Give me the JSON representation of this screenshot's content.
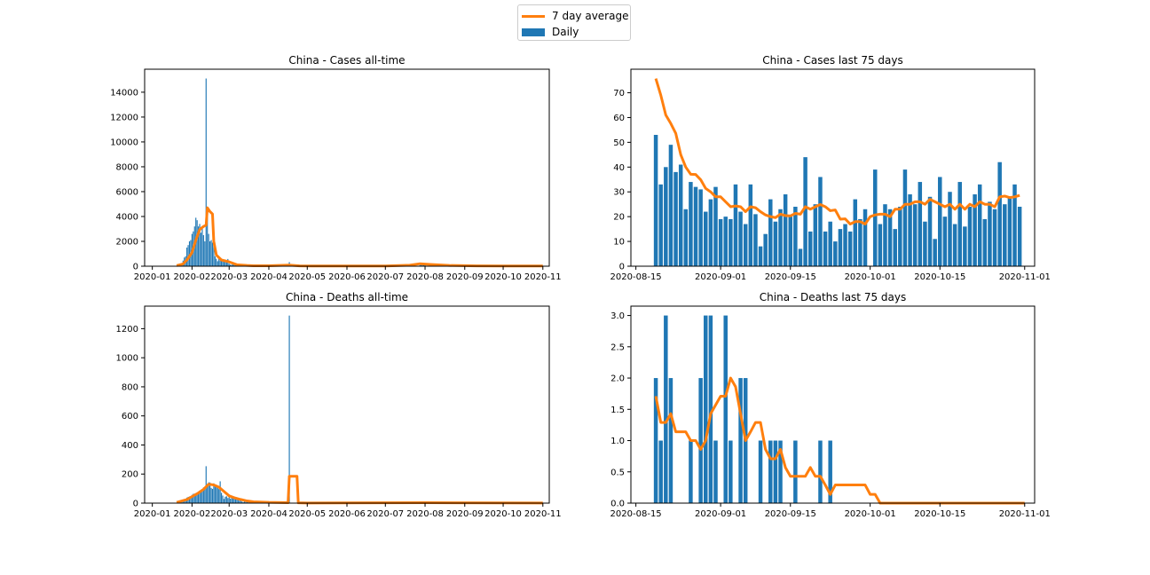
{
  "legend": {
    "avg_label": "7 day average",
    "daily_label": "Daily"
  },
  "colors": {
    "bar": "#1f77b4",
    "line": "#ff7f0e"
  },
  "chart_data": [
    {
      "type": "bar",
      "title": "China - Cases all-time",
      "xlabel": "",
      "ylabel": "",
      "xlim": [
        "2019-12-26",
        "2020-11-06"
      ],
      "ylim": [
        0,
        15850
      ],
      "xticks": [
        "2020-01-01",
        "2020-02-01",
        "2020-03-01",
        "2020-04-01",
        "2020-05-01",
        "2020-06-01",
        "2020-07-01",
        "2020-08-01",
        "2020-09-01",
        "2020-10-01",
        "2020-11-01"
      ],
      "xtick_labels": [
        "2020-01",
        "2020-02",
        "2020-03",
        "2020-04",
        "2020-05",
        "2020-06",
        "2020-07",
        "2020-08",
        "2020-09",
        "2020-10",
        "2020-11"
      ],
      "yticks": [
        0,
        2000,
        4000,
        6000,
        8000,
        10000,
        12000,
        14000
      ],
      "daily": {
        "x": [
          "2020-01-22",
          "2020-01-23",
          "2020-01-24",
          "2020-01-25",
          "2020-01-26",
          "2020-01-27",
          "2020-01-28",
          "2020-01-29",
          "2020-01-30",
          "2020-01-31",
          "2020-02-01",
          "2020-02-02",
          "2020-02-03",
          "2020-02-04",
          "2020-02-05",
          "2020-02-06",
          "2020-02-07",
          "2020-02-08",
          "2020-02-09",
          "2020-02-10",
          "2020-02-11",
          "2020-02-12",
          "2020-02-13",
          "2020-02-14",
          "2020-02-15",
          "2020-02-16",
          "2020-02-17",
          "2020-02-18",
          "2020-02-19",
          "2020-02-20",
          "2020-02-21",
          "2020-02-22",
          "2020-02-23",
          "2020-02-24",
          "2020-02-25",
          "2020-02-26",
          "2020-02-27",
          "2020-02-28",
          "2020-02-29",
          "2020-03-01",
          "2020-03-02",
          "2020-03-03",
          "2020-03-04",
          "2020-03-05",
          "2020-03-06",
          "2020-03-07",
          "2020-03-08",
          "2020-03-09",
          "2020-03-10",
          "2020-03-11",
          "2020-03-12",
          "2020-03-13",
          "2020-03-14",
          "2020-03-15",
          "2020-03-16",
          "2020-03-17",
          "2020-03-18",
          "2020-03-19",
          "2020-03-20",
          "2020-03-21",
          "2020-03-22",
          "2020-03-23",
          "2020-03-24",
          "2020-03-25",
          "2020-03-26",
          "2020-03-27",
          "2020-03-28",
          "2020-03-29",
          "2020-03-30",
          "2020-03-31",
          "2020-04-17",
          "2020-07-28",
          "2020-07-29",
          "2020-07-30",
          "2020-07-31",
          "2020-08-01"
        ],
        "values": [
          100,
          150,
          250,
          450,
          700,
          800,
          1500,
          1700,
          2000,
          2100,
          2600,
          2800,
          3200,
          3900,
          3700,
          3200,
          3400,
          2700,
          3100,
          2500,
          2000,
          15100,
          4100,
          2600,
          2000,
          2100,
          1900,
          1700,
          800,
          600,
          400,
          650,
          450,
          550,
          450,
          400,
          330,
          430,
          580,
          200,
          125,
          120,
          140,
          140,
          100,
          80,
          40,
          20,
          25,
          25,
          25,
          25,
          25,
          25,
          25,
          25,
          25,
          25,
          25,
          25,
          25,
          25,
          25,
          25,
          25,
          25,
          25,
          25,
          25,
          25,
          330,
          100,
          120,
          140,
          120,
          110
        ]
      },
      "average": {
        "x": [
          "2020-01-20",
          "2020-01-25",
          "2020-01-28",
          "2020-02-01",
          "2020-02-04",
          "2020-02-07",
          "2020-02-10",
          "2020-02-12",
          "2020-02-13",
          "2020-02-15",
          "2020-02-17",
          "2020-02-18",
          "2020-02-20",
          "2020-02-24",
          "2020-03-01",
          "2020-03-07",
          "2020-03-15",
          "2020-03-20",
          "2020-04-01",
          "2020-04-17",
          "2020-04-25",
          "2020-05-05",
          "2020-06-01",
          "2020-07-01",
          "2020-07-20",
          "2020-07-28",
          "2020-08-05",
          "2020-08-20",
          "2020-09-10",
          "2020-10-01",
          "2020-11-01"
        ],
        "values": [
          50,
          180,
          500,
          1100,
          2100,
          2950,
          3200,
          3300,
          4700,
          4400,
          4200,
          2000,
          900,
          500,
          350,
          120,
          60,
          40,
          40,
          90,
          30,
          20,
          20,
          20,
          80,
          200,
          140,
          60,
          30,
          20,
          20
        ]
      }
    },
    {
      "type": "bar",
      "title": "China - Cases last 75 days",
      "xlabel": "",
      "ylabel": "",
      "xlim": [
        "2020-08-14",
        "2020-11-03"
      ],
      "ylim": [
        0,
        79.5
      ],
      "xticks": [
        "2020-08-15",
        "2020-09-01",
        "2020-09-15",
        "2020-10-01",
        "2020-10-15",
        "2020-11-01"
      ],
      "xtick_labels": [
        "2020-08-15",
        "2020-09-01",
        "2020-09-15",
        "2020-10-01",
        "2020-10-15",
        "2020-11-01"
      ],
      "yticks": [
        0,
        10,
        20,
        30,
        40,
        50,
        60,
        70
      ],
      "start_date": "2020-08-19",
      "daily": [
        53,
        33,
        40,
        49,
        38,
        41,
        23,
        34,
        32,
        31,
        22,
        27,
        32,
        19,
        20,
        19,
        33,
        22,
        17,
        33,
        21,
        8,
        13,
        27,
        18,
        23,
        29,
        20,
        24,
        7,
        44,
        14,
        25,
        36,
        14,
        18,
        10,
        15,
        17,
        14,
        27,
        19,
        23,
        0,
        39,
        17,
        25,
        23,
        15,
        24,
        39,
        29,
        25,
        34,
        18,
        28,
        11,
        36,
        20,
        30,
        17,
        34,
        16,
        24,
        29,
        33,
        19,
        26,
        23,
        42,
        25,
        28,
        33,
        24
      ],
      "average": [
        75.7,
        69,
        61,
        57.6,
        53.6,
        45,
        40,
        37.1,
        37,
        34.9,
        31.4,
        30,
        28,
        28,
        26,
        24,
        24.3,
        24,
        22,
        24,
        23.6,
        22,
        20.7,
        20,
        19.6,
        21,
        20.4,
        20.3,
        21.3,
        21,
        24,
        23,
        24,
        24.9,
        24,
        22.4,
        22.7,
        19,
        19.1,
        17,
        18,
        18,
        17,
        20,
        20.7,
        21,
        21,
        20,
        23,
        23,
        25,
        25,
        26,
        26,
        25,
        27,
        26,
        25,
        24,
        25,
        23,
        25,
        23,
        25,
        24,
        26,
        25,
        25,
        24,
        28,
        28.3,
        27.7,
        28,
        28.6
      ]
    },
    {
      "type": "bar",
      "title": "China - Deaths all-time",
      "xlabel": "",
      "ylabel": "",
      "xlim": [
        "2019-12-26",
        "2020-11-06"
      ],
      "ylim": [
        0,
        1355
      ],
      "xticks": [
        "2020-01-01",
        "2020-02-01",
        "2020-03-01",
        "2020-04-01",
        "2020-05-01",
        "2020-06-01",
        "2020-07-01",
        "2020-08-01",
        "2020-09-01",
        "2020-10-01",
        "2020-11-01"
      ],
      "xtick_labels": [
        "2020-01",
        "2020-02",
        "2020-03",
        "2020-04",
        "2020-05",
        "2020-06",
        "2020-07",
        "2020-08",
        "2020-09",
        "2020-10",
        "2020-11"
      ],
      "yticks": [
        0,
        200,
        400,
        600,
        800,
        1000,
        1200
      ],
      "daily": {
        "x": [
          "2020-01-22",
          "2020-01-23",
          "2020-01-24",
          "2020-01-25",
          "2020-01-26",
          "2020-01-27",
          "2020-01-28",
          "2020-01-29",
          "2020-01-30",
          "2020-01-31",
          "2020-02-01",
          "2020-02-02",
          "2020-02-03",
          "2020-02-04",
          "2020-02-05",
          "2020-02-06",
          "2020-02-07",
          "2020-02-08",
          "2020-02-09",
          "2020-02-10",
          "2020-02-11",
          "2020-02-12",
          "2020-02-13",
          "2020-02-14",
          "2020-02-15",
          "2020-02-16",
          "2020-02-17",
          "2020-02-18",
          "2020-02-19",
          "2020-02-20",
          "2020-02-21",
          "2020-02-22",
          "2020-02-23",
          "2020-02-24",
          "2020-02-25",
          "2020-02-26",
          "2020-02-27",
          "2020-02-28",
          "2020-02-29",
          "2020-03-01",
          "2020-03-02",
          "2020-03-03",
          "2020-03-04",
          "2020-03-05",
          "2020-03-06",
          "2020-03-07",
          "2020-03-08",
          "2020-03-09",
          "2020-03-10",
          "2020-03-11",
          "2020-03-12",
          "2020-03-13",
          "2020-03-14",
          "2020-03-15",
          "2020-03-16",
          "2020-03-17",
          "2020-03-18",
          "2020-03-19",
          "2020-03-20",
          "2020-03-21",
          "2020-04-17"
        ],
        "values": [
          8,
          16,
          15,
          24,
          26,
          26,
          38,
          43,
          46,
          45,
          57,
          64,
          65,
          66,
          73,
          73,
          86,
          89,
          97,
          108,
          97,
          254,
          121,
          143,
          142,
          105,
          98,
          136,
          114,
          118,
          109,
          97,
          150,
          71,
          52,
          29,
          44,
          47,
          35,
          42,
          31,
          38,
          31,
          30,
          28,
          27,
          22,
          17,
          22,
          11,
          7,
          13,
          10,
          14,
          13,
          11,
          8,
          3,
          7,
          6,
          1290
        ]
      },
      "average": {
        "x": [
          "2020-01-20",
          "2020-01-28",
          "2020-02-01",
          "2020-02-06",
          "2020-02-10",
          "2020-02-14",
          "2020-02-18",
          "2020-02-22",
          "2020-02-26",
          "2020-03-01",
          "2020-03-05",
          "2020-03-10",
          "2020-03-15",
          "2020-03-20",
          "2020-04-01",
          "2020-04-16",
          "2020-04-17",
          "2020-04-23",
          "2020-04-24",
          "2020-05-01",
          "2020-08-01",
          "2020-11-01"
        ],
        "values": [
          5,
          25,
          45,
          70,
          95,
          130,
          125,
          110,
          80,
          50,
          37,
          25,
          15,
          9,
          5,
          3,
          185,
          185,
          2,
          1,
          3,
          1
        ]
      }
    },
    {
      "type": "bar",
      "title": "China - Deaths last 75 days",
      "xlabel": "",
      "ylabel": "",
      "xlim": [
        "2020-08-14",
        "2020-11-03"
      ],
      "ylim": [
        0,
        3.15
      ],
      "xticks": [
        "2020-08-15",
        "2020-09-01",
        "2020-09-15",
        "2020-10-01",
        "2020-10-15",
        "2020-11-01"
      ],
      "xtick_labels": [
        "2020-08-15",
        "2020-09-01",
        "2020-09-15",
        "2020-10-01",
        "2020-10-15",
        "2020-11-01"
      ],
      "yticks": [
        0.0,
        0.5,
        1.0,
        1.5,
        2.0,
        2.5,
        3.0
      ],
      "start_date": "2020-08-19",
      "daily": [
        2,
        1,
        3,
        2,
        0,
        0,
        0,
        1,
        0,
        2,
        3,
        3,
        1,
        0,
        3,
        1,
        0,
        2,
        2,
        0,
        0,
        1,
        0,
        1,
        1,
        1,
        0,
        0,
        1,
        0,
        0,
        0,
        0,
        1,
        0,
        1,
        0,
        0,
        0,
        0,
        0,
        0,
        0,
        0,
        0,
        0,
        0,
        0,
        0,
        0,
        0,
        0,
        0,
        0,
        0,
        0,
        0,
        0,
        0,
        0,
        0,
        0,
        0,
        0,
        0,
        0,
        0,
        0,
        0,
        0,
        0,
        0,
        0,
        0
      ],
      "average": [
        1.71,
        1.29,
        1.29,
        1.43,
        1.14,
        1.14,
        1.14,
        1.0,
        1.0,
        0.86,
        1.0,
        1.43,
        1.57,
        1.71,
        1.71,
        2.0,
        1.86,
        1.43,
        1.0,
        1.14,
        1.29,
        1.29,
        0.86,
        0.71,
        0.71,
        0.86,
        0.57,
        0.43,
        0.43,
        0.43,
        0.43,
        0.57,
        0.43,
        0.43,
        0.29,
        0.14,
        0.29,
        0.29,
        0.29,
        0.29,
        0.29,
        0.29,
        0.29,
        0.14,
        0.14,
        0,
        0,
        0,
        0,
        0,
        0,
        0,
        0,
        0,
        0,
        0,
        0,
        0,
        0,
        0,
        0,
        0,
        0,
        0,
        0,
        0,
        0,
        0,
        0,
        0,
        0,
        0,
        0,
        0,
        0
      ]
    }
  ]
}
